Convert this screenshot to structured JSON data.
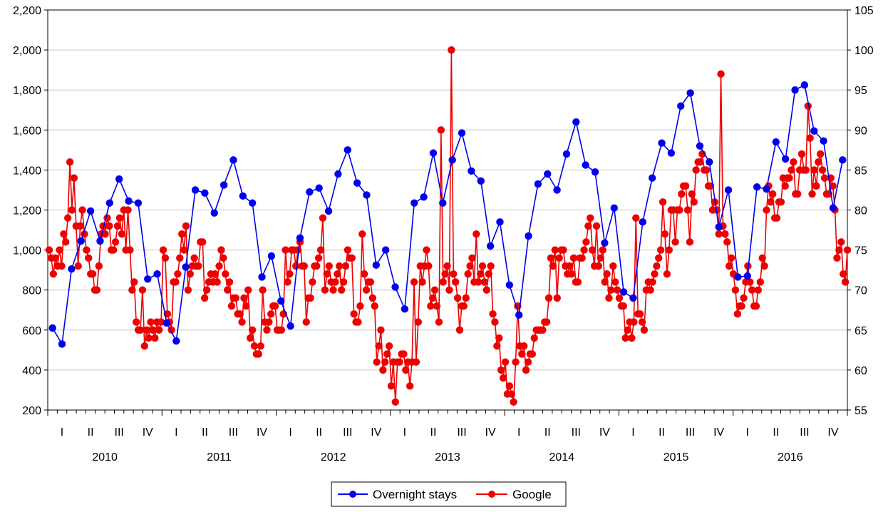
{
  "chart_data": {
    "type": "line",
    "left_axis": {
      "range": [
        200,
        2200
      ],
      "ticks": [
        "200",
        "400",
        "600",
        "800",
        "1,000",
        "1,200",
        "1,400",
        "1,600",
        "1,800",
        "2,000",
        "2,200"
      ]
    },
    "right_axis": {
      "range": [
        55,
        105
      ],
      "ticks": [
        "55",
        "60",
        "65",
        "70",
        "75",
        "80",
        "85",
        "90",
        "95",
        "100",
        "105"
      ]
    },
    "grid": "horizontal",
    "legend_position": "bottom",
    "x_quarter_labels": [
      "I",
      "II",
      "III",
      "IV"
    ],
    "years": [
      "2010",
      "2011",
      "2012",
      "2013",
      "2014",
      "2015",
      "2016"
    ],
    "series": [
      {
        "name": "Overnight stays",
        "color": "#0000ee",
        "axis": "left",
        "frequency": "monthly",
        "start": "2010-01",
        "values": [
          610,
          530,
          905,
          1045,
          1195,
          1045,
          1235,
          1355,
          1245,
          1235,
          855,
          880,
          635,
          545,
          915,
          1300,
          1285,
          1185,
          1325,
          1450,
          1270,
          1235,
          865,
          970,
          745,
          620,
          1060,
          1290,
          1310,
          1195,
          1380,
          1500,
          1335,
          1275,
          925,
          1000,
          815,
          705,
          1235,
          1265,
          1485,
          1235,
          1450,
          1585,
          1395,
          1345,
          1020,
          1140,
          825,
          675,
          1070,
          1330,
          1380,
          1300,
          1480,
          1640,
          1425,
          1390,
          1035,
          1210,
          790,
          760,
          1140,
          1360,
          1535,
          1485,
          1720,
          1785,
          1520,
          1440,
          1115,
          1300,
          865,
          870,
          1315,
          1305,
          1540,
          1455,
          1800,
          1825,
          1595,
          1545,
          1210,
          1450
        ]
      },
      {
        "name": "Google",
        "color": "#ee0000",
        "axis": "right",
        "frequency": "weekly",
        "start": "2010-01",
        "values": [
          75,
          74,
          72,
          74,
          73,
          75,
          73,
          77,
          76,
          79,
          86,
          80,
          84,
          78,
          73,
          78,
          80,
          77,
          75,
          74,
          72,
          72,
          70,
          70,
          73,
          77,
          78,
          77,
          79,
          78,
          75,
          75,
          76,
          78,
          79,
          77,
          80,
          75,
          80,
          75,
          70,
          71,
          66,
          65,
          65,
          70,
          63,
          65,
          64,
          66,
          65,
          64,
          66,
          65,
          66,
          75,
          74,
          67,
          66,
          65,
          71,
          71,
          72,
          74,
          77,
          75,
          78,
          70,
          72,
          73,
          74,
          73,
          73,
          76,
          76,
          69,
          70,
          71,
          72,
          71,
          72,
          71,
          73,
          75,
          74,
          72,
          70,
          71,
          68,
          69,
          69,
          67,
          67,
          66,
          69,
          68,
          70,
          64,
          65,
          63,
          62,
          62,
          63,
          70,
          66,
          65,
          66,
          67,
          68,
          68,
          65,
          65,
          65,
          67,
          75,
          71,
          72,
          75,
          75,
          73,
          75,
          76,
          73,
          73,
          66,
          69,
          69,
          71,
          73,
          73,
          74,
          75,
          79,
          70,
          72,
          73,
          71,
          70,
          71,
          72,
          73,
          70,
          71,
          73,
          75,
          74,
          74,
          67,
          66,
          66,
          68,
          77,
          72,
          70,
          71,
          71,
          69,
          68,
          61,
          63,
          65,
          60,
          61,
          62,
          63,
          58,
          61,
          56,
          61,
          61,
          62,
          62,
          60,
          61,
          58,
          61,
          71,
          61,
          66,
          73,
          71,
          73,
          75,
          73,
          68,
          69,
          70,
          68,
          66,
          90,
          71,
          72,
          73,
          70,
          100,
          72,
          71,
          69,
          65,
          68,
          68,
          69,
          72,
          73,
          74,
          71,
          77,
          71,
          72,
          73,
          71,
          70,
          72,
          73,
          67,
          66,
          63,
          64,
          60,
          59,
          61,
          57,
          58,
          57,
          56,
          61,
          68,
          63,
          62,
          63,
          60,
          61,
          62,
          62,
          64,
          65,
          65,
          65,
          65,
          66,
          66,
          69,
          74,
          73,
          75,
          69,
          74,
          75,
          75,
          73,
          72,
          73,
          72,
          74,
          71,
          71,
          74,
          74,
          75,
          76,
          78,
          79,
          75,
          73,
          78,
          73,
          74,
          75,
          71,
          72,
          69,
          70,
          73,
          71,
          70,
          69,
          68,
          68,
          64,
          65,
          66,
          64,
          66,
          79,
          67,
          67,
          66,
          65,
          70,
          71,
          70,
          71,
          72,
          73,
          74,
          75,
          81,
          77,
          72,
          75,
          80,
          80,
          76,
          80,
          80,
          82,
          83,
          83,
          80,
          76,
          82,
          81,
          85,
          86,
          86,
          87,
          85,
          85,
          83,
          83,
          80,
          81,
          80,
          77,
          97,
          78,
          77,
          76,
          73,
          74,
          72,
          70,
          67,
          68,
          68,
          69,
          71,
          73,
          71,
          70,
          68,
          68,
          70,
          71,
          74,
          73,
          80,
          83,
          81,
          82,
          79,
          79,
          81,
          81,
          84,
          83,
          84,
          84,
          85,
          86,
          82,
          82,
          85,
          87,
          85,
          85,
          93,
          89,
          82,
          85,
          83,
          86,
          87,
          85,
          84,
          82,
          82,
          84,
          83,
          80,
          74,
          75,
          76,
          72,
          71,
          75
        ]
      }
    ]
  },
  "legend": [
    {
      "label": "Overnight stays",
      "color": "#0000ee"
    },
    {
      "label": "Google",
      "color": "#ee0000"
    }
  ]
}
